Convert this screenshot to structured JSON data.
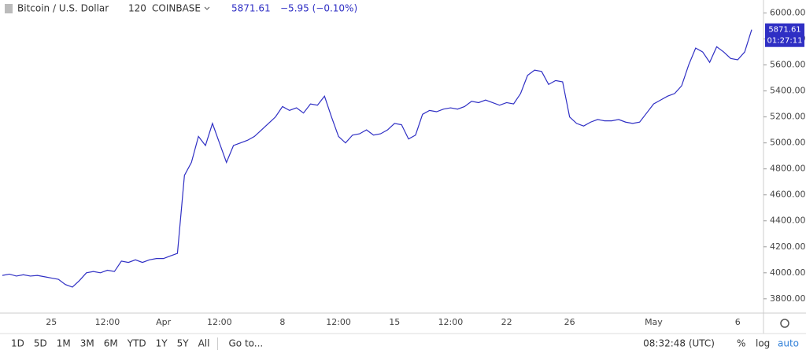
{
  "header": {
    "symbol": "Bitcoin / U.S. Dollar",
    "interval": "120",
    "exchange": "COINBASE",
    "price": "5871.61",
    "change": "−5.95 (−0.10%)",
    "countdown": "01:27:11"
  },
  "chart_data": {
    "type": "line",
    "categories": [
      null,
      null,
      null,
      null,
      null,
      null,
      null,
      "25",
      null,
      null,
      null,
      null,
      null,
      null,
      null,
      "12:00",
      null,
      null,
      null,
      null,
      null,
      null,
      null,
      "Apr",
      null,
      null,
      null,
      null,
      null,
      null,
      null,
      "12:00",
      null,
      null,
      null,
      null,
      null,
      null,
      null,
      null,
      "8",
      null,
      null,
      null,
      null,
      null,
      null,
      null,
      "12:00",
      null,
      null,
      null,
      null,
      null,
      null,
      null,
      "15",
      null,
      null,
      null,
      null,
      null,
      null,
      null,
      "12:00",
      null,
      null,
      null,
      null,
      null,
      null,
      null,
      "22",
      null,
      null,
      null,
      null,
      null,
      null,
      null,
      null,
      "26",
      null,
      null,
      null,
      null,
      null,
      null,
      null,
      null,
      null,
      null,
      null,
      "May",
      null,
      null,
      null,
      null,
      null,
      null,
      null,
      null,
      null,
      null,
      null,
      "6",
      null,
      null
    ],
    "series": [
      {
        "name": "Bitcoin / U.S. Dollar",
        "color": "#2f2fc4",
        "values": [
          3980,
          3990,
          3975,
          3985,
          3975,
          3980,
          3970,
          3960,
          3950,
          3910,
          3890,
          3940,
          4000,
          4010,
          4000,
          4020,
          4010,
          4090,
          4080,
          4100,
          4080,
          4100,
          4110,
          4110,
          4130,
          4150,
          4750,
          4850,
          5050,
          4980,
          5150,
          5000,
          4850,
          4980,
          5000,
          5020,
          5050,
          5100,
          5150,
          5200,
          5280,
          5250,
          5270,
          5230,
          5300,
          5290,
          5360,
          5200,
          5050,
          5000,
          5060,
          5070,
          5100,
          5060,
          5070,
          5100,
          5150,
          5140,
          5030,
          5060,
          5220,
          5250,
          5240,
          5260,
          5270,
          5260,
          5280,
          5320,
          5310,
          5330,
          5310,
          5290,
          5310,
          5300,
          5380,
          5520,
          5560,
          5550,
          5450,
          5480,
          5470,
          5200,
          5150,
          5130,
          5160,
          5180,
          5170,
          5170,
          5180,
          5160,
          5150,
          5160,
          5230,
          5300,
          5330,
          5360,
          5380,
          5440,
          5600,
          5730,
          5700,
          5620,
          5740,
          5700,
          5650,
          5640,
          5700,
          5871.61
        ]
      }
    ],
    "ylim": [
      3690,
      6100
    ],
    "yticks": [
      {
        "value": 3800,
        "label": "3800.00"
      },
      {
        "value": 4000,
        "label": "4000.00"
      },
      {
        "value": 4200,
        "label": "4200.00"
      },
      {
        "value": 4400,
        "label": "4400.00"
      },
      {
        "value": 4600,
        "label": "4600.00"
      },
      {
        "value": 4800,
        "label": "4800.00"
      },
      {
        "value": 5000,
        "label": "5000.00"
      },
      {
        "value": 5200,
        "label": "5200.00"
      },
      {
        "value": 5400,
        "label": "5400.00"
      },
      {
        "value": 5600,
        "label": "5600.00"
      },
      {
        "value": 5800,
        "label": "5800.00"
      },
      {
        "value": 6000,
        "label": "6000.00"
      }
    ],
    "grid": false
  },
  "toolbar": {
    "ranges": [
      "1D",
      "5D",
      "1M",
      "3M",
      "6M",
      "YTD",
      "1Y",
      "5Y",
      "All"
    ],
    "goto": "Go to...",
    "clock": "08:32:48 (UTC)",
    "options": [
      "%",
      "log",
      "auto"
    ]
  }
}
